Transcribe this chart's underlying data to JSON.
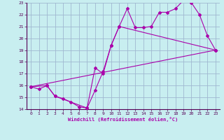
{
  "xlabel": "Windchill (Refroidissement éolien,°C)",
  "bg_color": "#c8eef0",
  "grid_color": "#a0b8d0",
  "line_color": "#aa00aa",
  "xlim": [
    -0.5,
    23.5
  ],
  "ylim": [
    14,
    23
  ],
  "yticks": [
    14,
    15,
    16,
    17,
    18,
    19,
    20,
    21,
    22,
    23
  ],
  "xticks": [
    0,
    1,
    2,
    3,
    4,
    5,
    6,
    7,
    8,
    9,
    10,
    11,
    12,
    13,
    14,
    15,
    16,
    17,
    18,
    19,
    20,
    21,
    22,
    23
  ],
  "line1_x": [
    0,
    1,
    2,
    3,
    4,
    5,
    6,
    7,
    8,
    9,
    10,
    11,
    12,
    13,
    14,
    15,
    16,
    17,
    18,
    19,
    20,
    21,
    22,
    23
  ],
  "line1_y": [
    15.9,
    15.7,
    16.0,
    15.1,
    14.9,
    14.6,
    14.2,
    14.1,
    17.5,
    17.0,
    19.4,
    21.0,
    22.5,
    20.9,
    20.9,
    21.0,
    22.2,
    22.2,
    22.5,
    23.2,
    23.0,
    22.0,
    20.2,
    19.0
  ],
  "line2_x": [
    0,
    2,
    3,
    7,
    8,
    9,
    10,
    11,
    23
  ],
  "line2_y": [
    15.9,
    16.0,
    15.1,
    14.1,
    15.6,
    17.2,
    19.4,
    21.0,
    19.0
  ],
  "line3_x": [
    0,
    23
  ],
  "line3_y": [
    15.9,
    19.0
  ]
}
